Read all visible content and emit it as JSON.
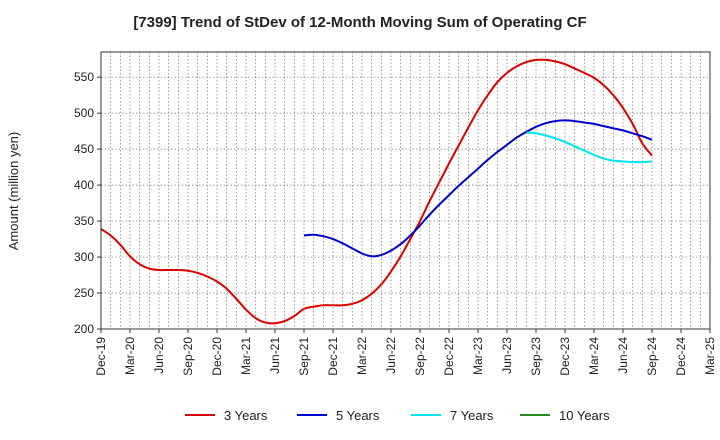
{
  "chart_data": {
    "type": "line",
    "title": "[7399]  Trend of StDev of 12-Month Moving Sum of Operating CF",
    "xlabel": "",
    "ylabel": "Amount (million yen)",
    "ylim": [
      200,
      585
    ],
    "yticks": [
      200,
      250,
      300,
      350,
      400,
      450,
      500,
      550
    ],
    "xtick_labels": [
      "Dec-19",
      "Mar-20",
      "Jun-20",
      "Sep-20",
      "Dec-20",
      "Mar-21",
      "Jun-21",
      "Sep-21",
      "Dec-21",
      "Mar-22",
      "Jun-22",
      "Sep-22",
      "Dec-22",
      "Mar-23",
      "Jun-23",
      "Sep-23",
      "Dec-23",
      "Mar-24",
      "Jun-24",
      "Sep-24",
      "Dec-24",
      "Mar-25"
    ],
    "grid": true,
    "legend_position": "bottom",
    "series": [
      {
        "name": "3 Years",
        "color": "#dd0000",
        "x": [
          "Dec-19",
          "Jan-20",
          "Feb-20",
          "Mar-20",
          "Apr-20",
          "May-20",
          "Jun-20",
          "Jul-20",
          "Aug-20",
          "Sep-20",
          "Oct-20",
          "Nov-20",
          "Dec-20",
          "Jan-21",
          "Feb-21",
          "Mar-21",
          "Apr-21",
          "May-21",
          "Jun-21",
          "Jul-21",
          "Aug-21",
          "Sep-21",
          "Oct-21",
          "Nov-21",
          "Dec-21",
          "Jan-22",
          "Feb-22",
          "Mar-22",
          "Apr-22",
          "May-22",
          "Jun-22",
          "Jul-22",
          "Aug-22",
          "Sep-22",
          "Oct-22",
          "Nov-22",
          "Dec-22",
          "Jan-23",
          "Feb-23",
          "Mar-23",
          "Apr-23",
          "May-23",
          "Jun-23",
          "Jul-23",
          "Aug-23",
          "Sep-23",
          "Oct-23",
          "Nov-23",
          "Dec-23",
          "Jan-24",
          "Feb-24",
          "Mar-24",
          "Apr-24",
          "May-24",
          "Jun-24",
          "Jul-24",
          "Aug-24",
          "Sep-24"
        ],
        "values": [
          339,
          330,
          317,
          301,
          290,
          284,
          282,
          282,
          282,
          281,
          278,
          273,
          266,
          256,
          242,
          227,
          215,
          209,
          208,
          211,
          218,
          228,
          231,
          233,
          233,
          233,
          235,
          240,
          249,
          262,
          280,
          301,
          325,
          350,
          378,
          404,
          430,
          455,
          480,
          504,
          525,
          543,
          556,
          565,
          571,
          574,
          574,
          572,
          568,
          562,
          556,
          549,
          539,
          525,
          507,
          485,
          458,
          441
        ]
      },
      {
        "name": "5 Years",
        "color": "#0000cc",
        "x": [
          "Sep-21",
          "Oct-21",
          "Nov-21",
          "Dec-21",
          "Jan-22",
          "Feb-22",
          "Mar-22",
          "Apr-22",
          "May-22",
          "Jun-22",
          "Jul-22",
          "Aug-22",
          "Sep-22",
          "Oct-22",
          "Nov-22",
          "Dec-22",
          "Jan-23",
          "Feb-23",
          "Mar-23",
          "Apr-23",
          "May-23",
          "Jun-23",
          "Jul-23",
          "Aug-23",
          "Sep-23",
          "Oct-23",
          "Nov-23",
          "Dec-23",
          "Jan-24",
          "Feb-24",
          "Mar-24",
          "Apr-24",
          "May-24",
          "Jun-24",
          "Jul-24",
          "Aug-24",
          "Sep-24"
        ],
        "values": [
          330,
          331,
          329,
          325,
          319,
          312,
          305,
          301,
          303,
          309,
          318,
          330,
          344,
          359,
          373,
          386,
          399,
          411,
          423,
          435,
          446,
          456,
          466,
          474,
          481,
          486,
          489,
          490,
          489,
          487,
          485,
          482,
          479,
          476,
          472,
          468,
          463
        ]
      },
      {
        "name": "7 Years",
        "color": "#00e5ee",
        "x": [
          "Aug-23",
          "Sep-23",
          "Oct-23",
          "Nov-23",
          "Dec-23",
          "Jan-24",
          "Feb-24",
          "Mar-24",
          "Apr-24",
          "May-24",
          "Jun-24",
          "Jul-24",
          "Aug-24",
          "Sep-24"
        ],
        "values": [
          473,
          472,
          469,
          465,
          460,
          454,
          448,
          442,
          437,
          434,
          433,
          432,
          432,
          433
        ]
      },
      {
        "name": "10 Years",
        "color": "#228b22",
        "x": [],
        "values": []
      }
    ]
  }
}
